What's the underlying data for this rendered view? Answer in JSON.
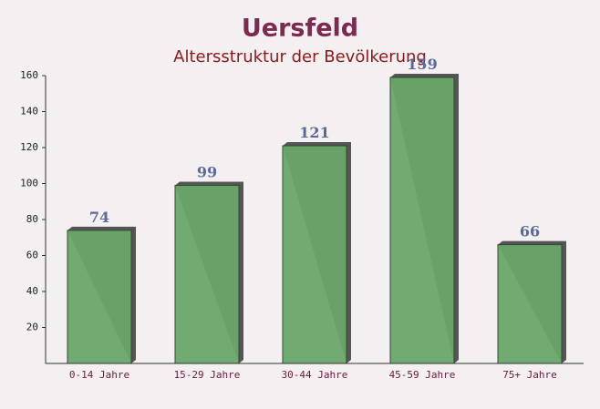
{
  "chart_data": {
    "type": "bar",
    "title": "Uersfeld",
    "subtitle": "Altersstruktur der Bevölkerung",
    "categories": [
      "0-14 Jahre",
      "15-29 Jahre",
      "30-44 Jahre",
      "45-59 Jahre",
      "75+ Jahre"
    ],
    "values": [
      74,
      99,
      121,
      159,
      66
    ],
    "color": "#6aa66a",
    "ylim": [
      0,
      160
    ],
    "yticks": [
      20,
      40,
      60,
      80,
      100,
      120,
      140,
      160
    ],
    "grid": false
  }
}
